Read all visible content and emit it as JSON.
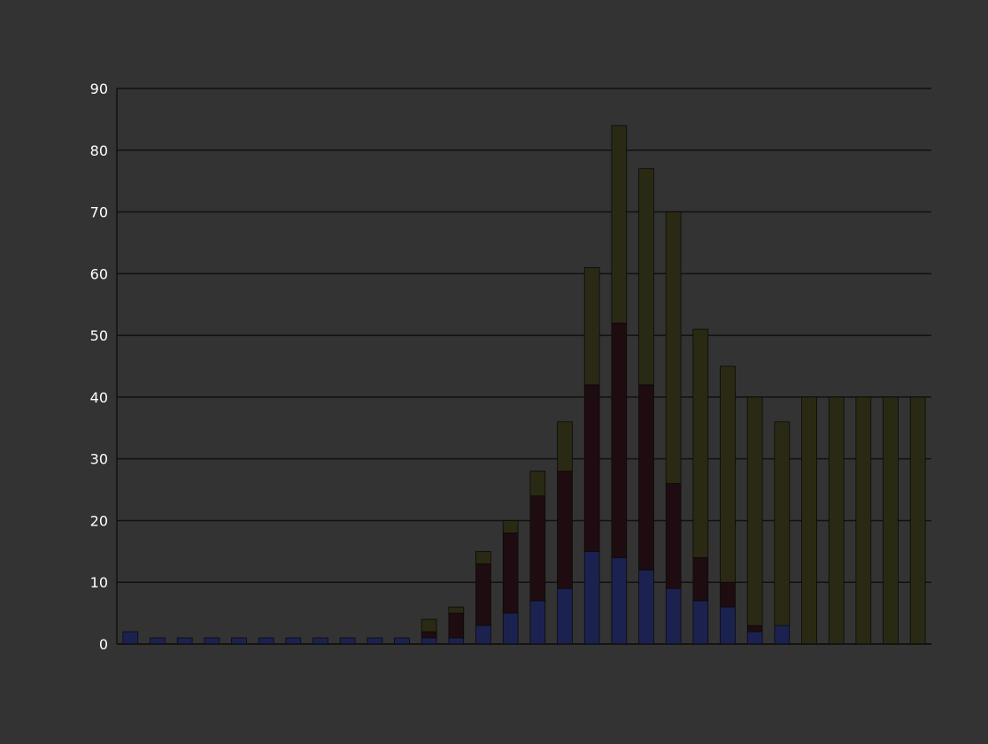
{
  "chart_data": {
    "type": "bar",
    "stacked": true,
    "title": "",
    "xlabel": "",
    "ylabel": "",
    "categories": [
      "",
      "",
      "",
      "",
      "",
      "",
      "",
      "",
      "",
      "",
      "",
      "",
      "",
      "",
      "",
      "",
      "",
      "",
      "",
      "",
      "",
      "",
      "",
      "",
      "",
      "",
      "",
      "",
      "",
      ""
    ],
    "series": [
      {
        "color": "#1c2250",
        "values": [
          2,
          1,
          1,
          1,
          1,
          1,
          1,
          1,
          1,
          1,
          1,
          1,
          1,
          3,
          5,
          7,
          9,
          15,
          14,
          12,
          9,
          7,
          6,
          2,
          3,
          0,
          0,
          0,
          0,
          0
        ]
      },
      {
        "color": "#1e0c10",
        "values": [
          0,
          0,
          0,
          0,
          0,
          0,
          0,
          0,
          0,
          0,
          0,
          1,
          4,
          10,
          13,
          17,
          19,
          27,
          38,
          30,
          17,
          7,
          4,
          1,
          0,
          0,
          0,
          0,
          0,
          0
        ]
      },
      {
        "color": "#2a2a14",
        "values": [
          0,
          0,
          0,
          0,
          0,
          0,
          0,
          0,
          0,
          0,
          0,
          2,
          1,
          2,
          2,
          4,
          8,
          19,
          32,
          35,
          44,
          37,
          35,
          37,
          33,
          40,
          40,
          40,
          40,
          40
        ]
      }
    ],
    "ylim": [
      0,
      90
    ],
    "ytick_step": 10,
    "grid": true,
    "legend": "none"
  }
}
